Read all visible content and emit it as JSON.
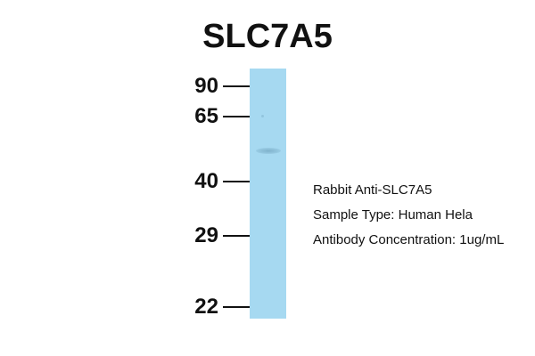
{
  "title": "SLC7A5",
  "markers": [
    "90",
    "65",
    "40",
    "29",
    "22"
  ],
  "info": {
    "antibody": "Rabbit Anti-SLC7A5",
    "sample": "Sample Type: Human Hela",
    "concentration": "Antibody Concentration: 1ug/mL"
  },
  "colors": {
    "lane": "#a6d9f1",
    "band": "#7fb2cc"
  }
}
